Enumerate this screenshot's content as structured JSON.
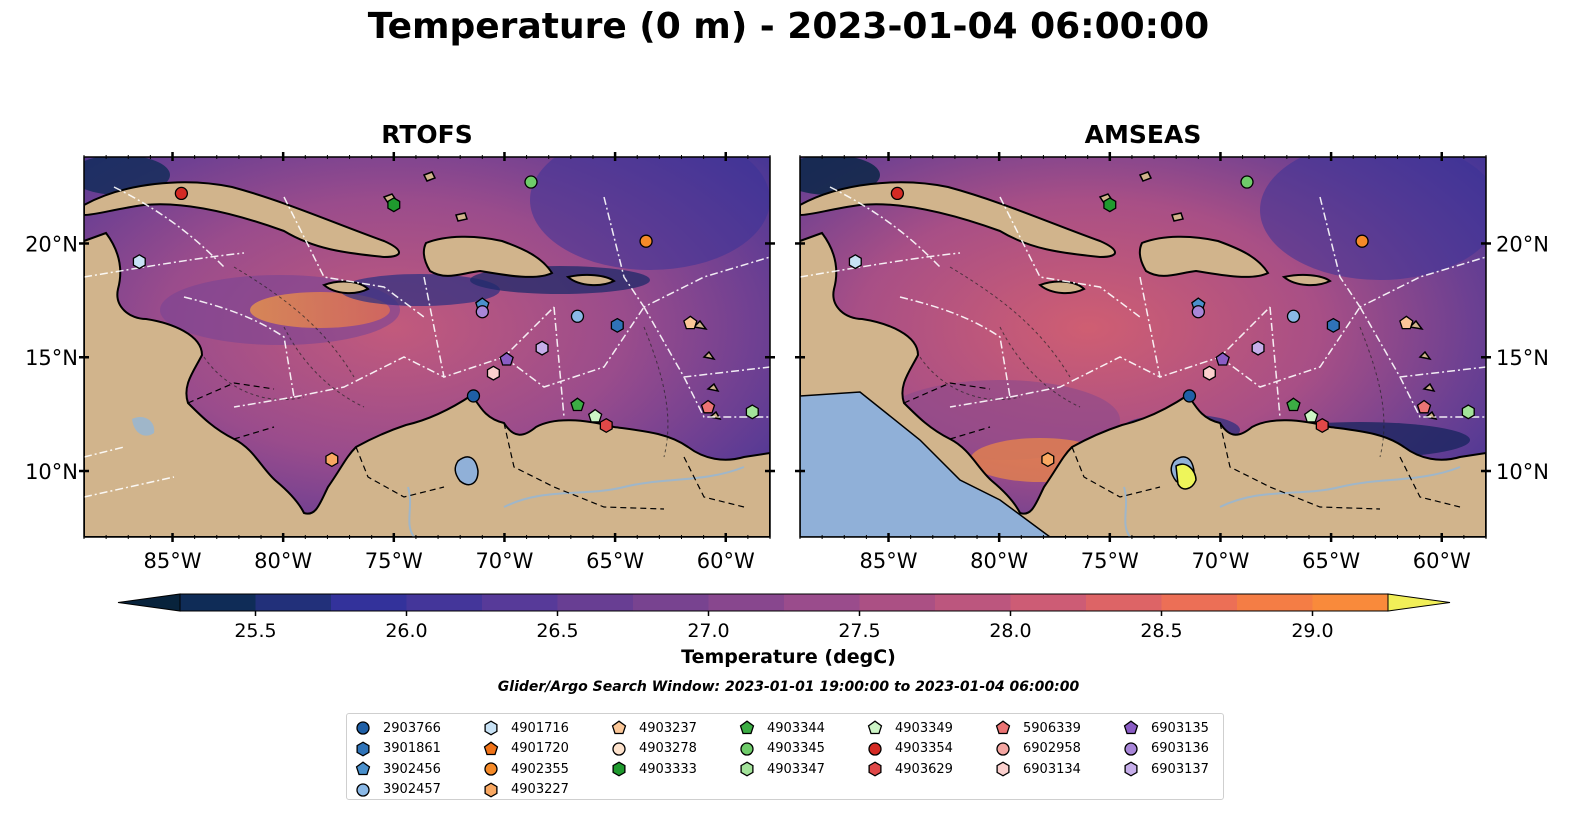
{
  "title": "Temperature (0 m) - 2023-01-04 06:00:00",
  "panels": [
    {
      "title": "RTOFS"
    },
    {
      "title": "AMSEAS"
    }
  ],
  "axes": {
    "x_ticks": [
      "85°W",
      "80°W",
      "75°W",
      "70°W",
      "65°W",
      "60°W"
    ],
    "y_ticks": [
      "20°N",
      "15°N",
      "10°N"
    ]
  },
  "colorbar": {
    "label": "Temperature (degC)",
    "ticks": [
      "25.5",
      "26.0",
      "26.5",
      "27.0",
      "27.5",
      "28.0",
      "28.5",
      "29.0"
    ],
    "min": 25.25,
    "max": 29.25,
    "step": 0.25,
    "colors": [
      "#08233c",
      "#0f2c57",
      "#22307a",
      "#33329b",
      "#44369a",
      "#573a99",
      "#683e93",
      "#784390",
      "#88478e",
      "#9a4c8c",
      "#ab5084",
      "#bc567e",
      "#cd5c75",
      "#dd6466",
      "#ec6f56",
      "#f47d45",
      "#f98a3b",
      "#fb9b3a",
      "#f8b03e",
      "#f0cb47",
      "#f1ef58"
    ]
  },
  "search_window": "Glider/Argo Search Window: 2023-01-01 19:00:00 to 2023-01-04 06:00:00",
  "legend": {
    "columns": [
      [
        {
          "label": "2903766",
          "shape": "circle",
          "color": "#1f5fa6"
        },
        {
          "label": "3901861",
          "shape": "hexagon",
          "color": "#2f73b8"
        },
        {
          "label": "3902456",
          "shape": "pentagon",
          "color": "#4a90cc"
        },
        {
          "label": "3902457",
          "shape": "circle",
          "color": "#8ab8e6"
        }
      ],
      [
        {
          "label": "4901716",
          "shape": "hexagon",
          "color": "#c8e2f5"
        },
        {
          "label": "4901720",
          "shape": "pentagon",
          "color": "#f07318"
        },
        {
          "label": "4902355",
          "shape": "circle",
          "color": "#f58a28"
        },
        {
          "label": "4903227",
          "shape": "hexagon",
          "color": "#f9a862"
        }
      ],
      [
        {
          "label": "4903237",
          "shape": "pentagon",
          "color": "#fbc798"
        },
        {
          "label": "4903278",
          "shape": "circle",
          "color": "#fde2cc"
        },
        {
          "label": "4903333",
          "shape": "hexagon",
          "color": "#1f9a2e"
        }
      ],
      [
        {
          "label": "4903344",
          "shape": "pentagon",
          "color": "#3cad44"
        },
        {
          "label": "4903345",
          "shape": "circle",
          "color": "#6fcc6a"
        },
        {
          "label": "4903347",
          "shape": "hexagon",
          "color": "#a3e39a"
        }
      ],
      [
        {
          "label": "4903349",
          "shape": "pentagon",
          "color": "#cdf5c6"
        },
        {
          "label": "4903354",
          "shape": "circle",
          "color": "#d42a24"
        },
        {
          "label": "4903629",
          "shape": "hexagon",
          "color": "#e04848"
        }
      ],
      [
        {
          "label": "5906339",
          "shape": "pentagon",
          "color": "#ec7474"
        },
        {
          "label": "6902958",
          "shape": "circle",
          "color": "#f4a6a2"
        },
        {
          "label": "6903134",
          "shape": "hexagon",
          "color": "#fbd0ce"
        }
      ],
      [
        {
          "label": "6903135",
          "shape": "pentagon",
          "color": "#8a5cc4"
        },
        {
          "label": "6903136",
          "shape": "circle",
          "color": "#a886d8"
        },
        {
          "label": "6903137",
          "shape": "hexagon",
          "color": "#c6aeea"
        }
      ]
    ]
  },
  "observations": [
    {
      "id": "4903354",
      "lon": -84.6,
      "lat": 22.2
    },
    {
      "id": "4901716",
      "lon": -86.5,
      "lat": 19.2
    },
    {
      "id": "4903333",
      "lon": -75.0,
      "lat": 21.7
    },
    {
      "id": "4903345",
      "lon": -68.8,
      "lat": 22.7
    },
    {
      "id": "4902355",
      "lon": -63.6,
      "lat": 20.1
    },
    {
      "id": "3902456",
      "lon": -71.0,
      "lat": 17.3
    },
    {
      "id": "6903136",
      "lon": -71.0,
      "lat": 17.0
    },
    {
      "id": "3902457",
      "lon": -66.7,
      "lat": 16.8
    },
    {
      "id": "3901861",
      "lon": -64.9,
      "lat": 16.4
    },
    {
      "id": "6903137",
      "lon": -68.3,
      "lat": 15.4
    },
    {
      "id": "6903135",
      "lon": -69.9,
      "lat": 14.9
    },
    {
      "id": "6903134",
      "lon": -70.5,
      "lat": 14.3
    },
    {
      "id": "2903766",
      "lon": -71.4,
      "lat": 13.3
    },
    {
      "id": "4903344",
      "lon": -66.7,
      "lat": 12.9
    },
    {
      "id": "4903349",
      "lon": -65.9,
      "lat": 12.4
    },
    {
      "id": "4903629",
      "lon": -65.4,
      "lat": 12.0
    },
    {
      "id": "5906339",
      "lon": -60.8,
      "lat": 12.8
    },
    {
      "id": "4903347",
      "lon": -58.8,
      "lat": 12.6
    },
    {
      "id": "4903237",
      "lon": -61.6,
      "lat": 16.5
    },
    {
      "id": "4903227",
      "lon": -77.8,
      "lat": 10.5
    }
  ]
}
